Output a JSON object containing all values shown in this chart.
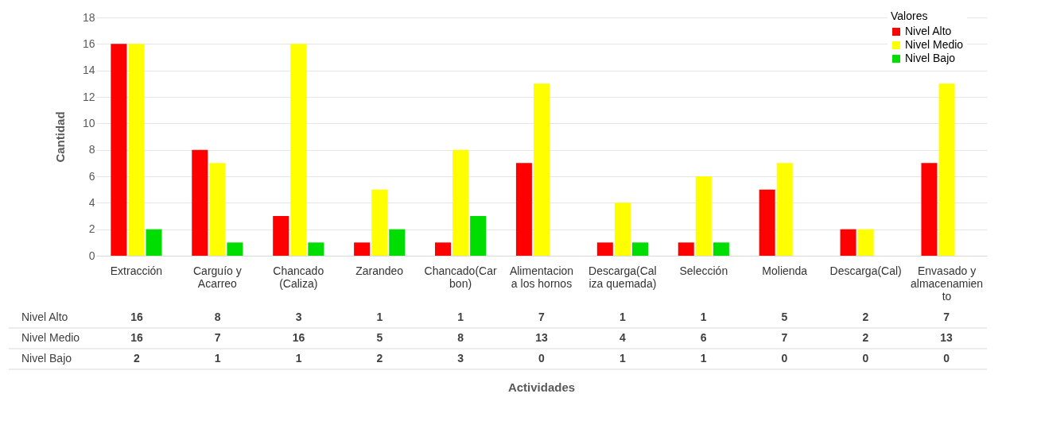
{
  "chart_data": {
    "type": "bar",
    "annotations": [
      "Actividades"
    ],
    "ylabel": "Cantidad",
    "legend_title": "Valores",
    "categories": [
      "Extracción",
      "Carguío y Acarreo",
      "Chancado (Caliza)",
      "Zarandeo",
      "Chancado(Carbon)",
      "Alimentacion a los hornos",
      "Descarga(Caliza quemada)",
      "Selección",
      "Molienda",
      "Descarga(Cal)",
      "Envasado y almacenamiento"
    ],
    "series": [
      {
        "name": "Nivel Alto",
        "color": "#ff0000",
        "values": [
          16,
          8,
          3,
          1,
          1,
          7,
          1,
          1,
          5,
          2,
          7
        ]
      },
      {
        "name": "Nivel Medio",
        "color": "#ffff00",
        "values": [
          16,
          7,
          16,
          5,
          8,
          13,
          4,
          6,
          7,
          2,
          13
        ]
      },
      {
        "name": "Nivel Bajo",
        "color": "#00dd00",
        "values": [
          2,
          1,
          1,
          2,
          3,
          0,
          1,
          1,
          0,
          0,
          0
        ]
      }
    ],
    "ylim": [
      0,
      18
    ],
    "yticks": [
      0,
      2,
      4,
      6,
      8,
      10,
      12,
      14,
      16,
      18
    ],
    "grid": "y",
    "legend": "top right",
    "data_labels": true
  }
}
